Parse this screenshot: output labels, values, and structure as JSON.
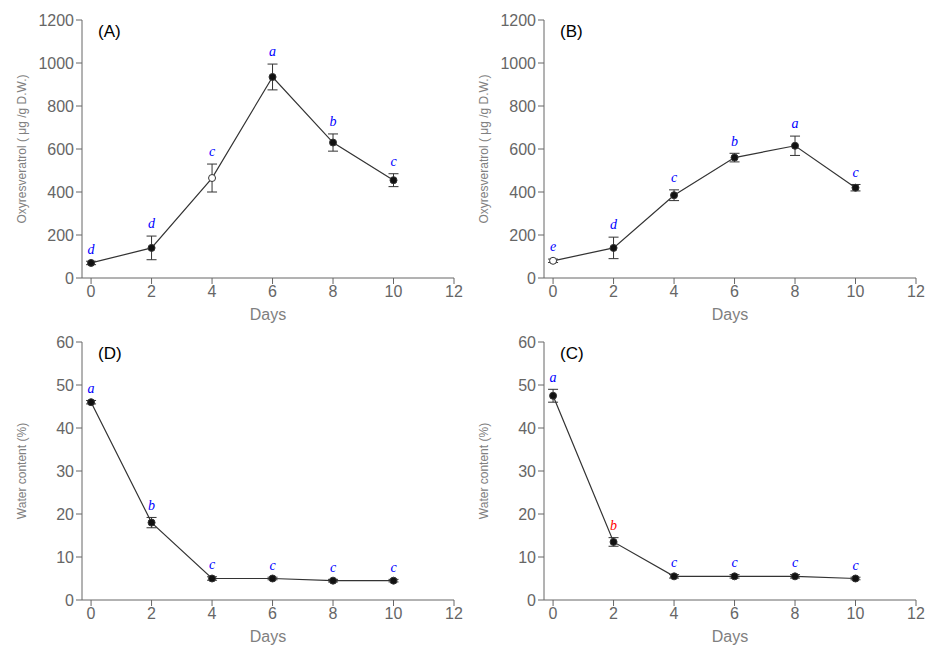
{
  "chart_data": [
    {
      "type": "line",
      "title": "(A)",
      "xlabel": "Days",
      "ylabel": "Oxyresveratrol (  μg /g D.W.)",
      "x": [
        0,
        2,
        4,
        6,
        8,
        10
      ],
      "xlim": [
        -0.3,
        12
      ],
      "xticks": [
        0,
        2,
        4,
        6,
        8,
        10,
        12
      ],
      "ylim": [
        0,
        1200
      ],
      "yticks": [
        0,
        200,
        400,
        600,
        800,
        1000,
        1200
      ],
      "grid": false,
      "series": [
        {
          "values": [
            70,
            140,
            465,
            935,
            630,
            455
          ],
          "error": [
            8,
            55,
            65,
            60,
            40,
            30
          ],
          "color": "#333333",
          "marker": "o",
          "colors": [
            "#111111",
            "#111111",
            "white",
            "#111111",
            "#111111",
            "#111111"
          ]
        }
      ],
      "annotations": [
        {
          "x": 0,
          "text": "d",
          "color": "blue"
        },
        {
          "x": 2,
          "text": "d",
          "color": "blue"
        },
        {
          "x": 4,
          "text": "c",
          "color": "blue"
        },
        {
          "x": 6,
          "text": "a",
          "color": "blue"
        },
        {
          "x": 8,
          "text": "b",
          "color": "blue"
        },
        {
          "x": 10,
          "text": "c",
          "color": "blue"
        }
      ]
    },
    {
      "type": "line",
      "title": "(B)",
      "xlabel": "Days",
      "ylabel": "Oxyresveratrol (  μg /g D.W.)",
      "x": [
        0,
        2,
        4,
        6,
        8,
        10
      ],
      "xlim": [
        -0.3,
        12
      ],
      "xticks": [
        0,
        2,
        4,
        6,
        8,
        10,
        12
      ],
      "ylim": [
        0,
        1200
      ],
      "yticks": [
        0,
        200,
        400,
        600,
        800,
        1000,
        1200
      ],
      "grid": false,
      "series": [
        {
          "values": [
            80,
            140,
            385,
            560,
            615,
            420
          ],
          "error": [
            8,
            50,
            25,
            20,
            45,
            15
          ],
          "color": "#333333",
          "marker": "o",
          "colors": [
            "white",
            "#111111",
            "#111111",
            "#111111",
            "#111111",
            "#111111"
          ]
        }
      ],
      "annotations": [
        {
          "x": 0,
          "text": "e",
          "color": "blue"
        },
        {
          "x": 2,
          "text": "d",
          "color": "blue"
        },
        {
          "x": 4,
          "text": "c",
          "color": "blue"
        },
        {
          "x": 6,
          "text": "b",
          "color": "blue"
        },
        {
          "x": 8,
          "text": "a",
          "color": "blue"
        },
        {
          "x": 10,
          "text": "c",
          "color": "blue"
        }
      ]
    },
    {
      "type": "line",
      "title": "(D)",
      "xlabel": "Days",
      "ylabel": "Water content (%)",
      "x": [
        0,
        2,
        4,
        6,
        8,
        10
      ],
      "xlim": [
        -0.3,
        12
      ],
      "xticks": [
        0,
        2,
        4,
        6,
        8,
        10,
        12
      ],
      "ylim": [
        0,
        60
      ],
      "yticks": [
        0,
        10,
        20,
        30,
        40,
        50,
        60
      ],
      "grid": false,
      "series": [
        {
          "values": [
            46.0,
            18.0,
            5.0,
            5.0,
            4.5,
            4.5
          ],
          "error": [
            0.4,
            1.2,
            0.4,
            0.3,
            0.3,
            0.3
          ],
          "color": "#333333",
          "marker": "o",
          "colors": [
            "#111111",
            "#111111",
            "#111111",
            "#111111",
            "#111111",
            "#111111"
          ]
        }
      ],
      "annotations": [
        {
          "x": 0,
          "text": "a",
          "color": "blue"
        },
        {
          "x": 2,
          "text": "b",
          "color": "blue"
        },
        {
          "x": 4,
          "text": "c",
          "color": "blue"
        },
        {
          "x": 6,
          "text": "c",
          "color": "blue"
        },
        {
          "x": 8,
          "text": "c",
          "color": "blue"
        },
        {
          "x": 10,
          "text": "c",
          "color": "blue"
        }
      ]
    },
    {
      "type": "line",
      "title": "(C)",
      "xlabel": "Days",
      "ylabel": "Water content (%)",
      "x": [
        0,
        2,
        4,
        6,
        8,
        10
      ],
      "xlim": [
        -0.3,
        12
      ],
      "xticks": [
        0,
        2,
        4,
        6,
        8,
        10,
        12
      ],
      "ylim": [
        0,
        60
      ],
      "yticks": [
        0,
        10,
        20,
        30,
        40,
        50,
        60
      ],
      "grid": false,
      "series": [
        {
          "values": [
            47.5,
            13.5,
            5.5,
            5.5,
            5.5,
            5.0
          ],
          "error": [
            1.5,
            1.0,
            0.4,
            0.4,
            0.4,
            0.3
          ],
          "color": "#333333",
          "marker": "o",
          "colors": [
            "#111111",
            "#111111",
            "#111111",
            "#111111",
            "#111111",
            "#111111"
          ]
        }
      ],
      "annotations": [
        {
          "x": 0,
          "text": "a",
          "color": "blue"
        },
        {
          "x": 2,
          "text": "b",
          "color": "red"
        },
        {
          "x": 4,
          "text": "c",
          "color": "blue"
        },
        {
          "x": 6,
          "text": "c",
          "color": "blue"
        },
        {
          "x": 8,
          "text": "c",
          "color": "blue"
        },
        {
          "x": 10,
          "text": "c",
          "color": "blue"
        }
      ]
    }
  ]
}
